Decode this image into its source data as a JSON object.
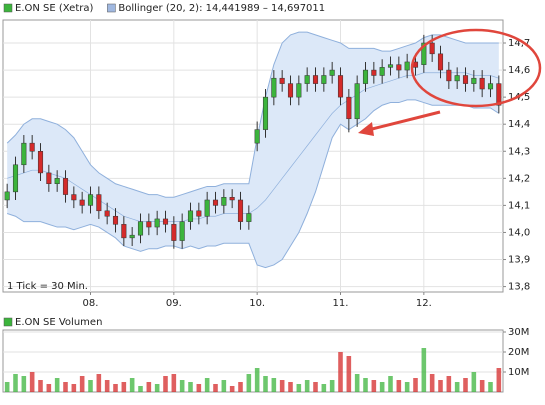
{
  "chart_data": [
    {
      "type": "candlestick",
      "legend": [
        {
          "name": "E.ON SE (Xetra)",
          "color": "#3cb43c"
        },
        {
          "name": "Bollinger (20, 2): 14,441989 – 14,697011",
          "color": "#a0b8e0"
        }
      ],
      "annotation": "1 Tick = 30 Min.",
      "up_color": "#3cb43c",
      "down_color": "#d42a2a",
      "band_color": "#dce8f8",
      "band_line_color": "#8fb0dc",
      "xlim": [
        -0.5,
        59.5
      ],
      "xticks": [
        {
          "value": 10,
          "label": "08."
        },
        {
          "value": 20,
          "label": "09."
        },
        {
          "value": 30,
          "label": "10."
        },
        {
          "value": 40,
          "label": "11."
        },
        {
          "value": 50,
          "label": "12."
        }
      ],
      "ylim": [
        13.78,
        14.785
      ],
      "yticks": [
        {
          "value": 13.8,
          "label": "13,8"
        },
        {
          "value": 13.9,
          "label": "13,9"
        },
        {
          "value": 14.0,
          "label": "14,0"
        },
        {
          "value": 14.1,
          "label": "14,1"
        },
        {
          "value": 14.2,
          "label": "14,2"
        },
        {
          "value": 14.3,
          "label": "14,3"
        },
        {
          "value": 14.4,
          "label": "14,4"
        },
        {
          "value": 14.5,
          "label": "14,5"
        },
        {
          "value": 14.6,
          "label": "14,6"
        },
        {
          "value": 14.7,
          "label": "14,7"
        }
      ],
      "grid": true,
      "x": [
        0,
        1,
        2,
        3,
        4,
        5,
        6,
        7,
        8,
        9,
        10,
        11,
        12,
        13,
        14,
        15,
        16,
        17,
        18,
        19,
        20,
        21,
        22,
        23,
        24,
        25,
        26,
        27,
        28,
        29,
        30,
        31,
        32,
        33,
        34,
        35,
        36,
        37,
        38,
        39,
        40,
        41,
        42,
        43,
        44,
        45,
        46,
        47,
        48,
        49,
        50,
        51,
        52,
        53,
        54,
        55,
        56,
        57,
        58,
        59
      ],
      "open": [
        14.12,
        14.15,
        14.25,
        14.33,
        14.3,
        14.22,
        14.18,
        14.2,
        14.14,
        14.12,
        14.1,
        14.14,
        14.08,
        14.06,
        14.03,
        13.98,
        13.99,
        14.04,
        14.02,
        14.05,
        14.03,
        13.97,
        14.04,
        14.08,
        14.06,
        14.12,
        14.1,
        14.13,
        14.12,
        14.04,
        14.33,
        14.38,
        14.5,
        14.57,
        14.55,
        14.5,
        14.55,
        14.58,
        14.55,
        14.58,
        14.58,
        14.5,
        14.42,
        14.55,
        14.6,
        14.58,
        14.61,
        14.62,
        14.6,
        14.63,
        14.62,
        14.7,
        14.66,
        14.6,
        14.56,
        14.58,
        14.55,
        14.57,
        14.53,
        14.55
      ],
      "high": [
        14.18,
        14.28,
        14.36,
        14.36,
        14.33,
        14.25,
        14.23,
        14.23,
        14.17,
        14.15,
        14.17,
        14.17,
        14.11,
        14.09,
        14.06,
        14.02,
        14.07,
        14.07,
        14.08,
        14.08,
        14.06,
        14.07,
        14.11,
        14.11,
        14.15,
        14.15,
        14.16,
        14.16,
        14.15,
        14.1,
        14.41,
        14.53,
        14.6,
        14.6,
        14.58,
        14.58,
        14.61,
        14.61,
        14.61,
        14.63,
        14.61,
        14.53,
        14.58,
        14.63,
        14.63,
        14.64,
        14.65,
        14.65,
        14.66,
        14.66,
        14.73,
        14.73,
        14.69,
        14.63,
        14.61,
        14.61,
        14.6,
        14.6,
        14.58,
        14.58
      ],
      "low": [
        14.09,
        14.12,
        14.22,
        14.27,
        14.19,
        14.15,
        14.15,
        14.11,
        14.09,
        14.07,
        14.07,
        14.05,
        14.03,
        14.0,
        13.95,
        13.95,
        13.96,
        13.99,
        13.99,
        14.0,
        13.94,
        13.94,
        14.01,
        14.03,
        14.03,
        14.07,
        14.07,
        14.09,
        14.01,
        14.01,
        14.3,
        14.35,
        14.47,
        14.52,
        14.47,
        14.47,
        14.52,
        14.52,
        14.52,
        14.55,
        14.47,
        14.37,
        14.39,
        14.52,
        14.55,
        14.55,
        14.58,
        14.57,
        14.57,
        14.58,
        14.59,
        14.63,
        14.57,
        14.53,
        14.53,
        14.52,
        14.52,
        14.5,
        14.5,
        14.44
      ],
      "close": [
        14.15,
        14.25,
        14.33,
        14.3,
        14.22,
        14.18,
        14.2,
        14.14,
        14.12,
        14.1,
        14.14,
        14.08,
        14.06,
        14.03,
        13.98,
        13.99,
        14.04,
        14.02,
        14.05,
        14.03,
        13.97,
        14.04,
        14.08,
        14.06,
        14.12,
        14.1,
        14.13,
        14.12,
        14.04,
        14.07,
        14.38,
        14.5,
        14.57,
        14.55,
        14.5,
        14.55,
        14.58,
        14.55,
        14.58,
        14.6,
        14.5,
        14.42,
        14.55,
        14.6,
        14.58,
        14.61,
        14.62,
        14.6,
        14.63,
        14.61,
        14.7,
        14.66,
        14.6,
        14.56,
        14.58,
        14.55,
        14.57,
        14.53,
        14.55,
        14.47
      ],
      "upper": [
        14.33,
        14.36,
        14.4,
        14.42,
        14.42,
        14.41,
        14.4,
        14.38,
        14.35,
        14.3,
        14.25,
        14.22,
        14.2,
        14.18,
        14.17,
        14.16,
        14.15,
        14.14,
        14.14,
        14.13,
        14.13,
        14.14,
        14.15,
        14.16,
        14.17,
        14.17,
        14.18,
        14.18,
        14.18,
        14.18,
        14.35,
        14.5,
        14.62,
        14.7,
        14.73,
        14.74,
        14.74,
        14.73,
        14.72,
        14.71,
        14.7,
        14.68,
        14.68,
        14.68,
        14.68,
        14.67,
        14.67,
        14.68,
        14.69,
        14.7,
        14.72,
        14.73,
        14.73,
        14.72,
        14.71,
        14.7,
        14.7,
        14.7,
        14.7,
        14.7
      ],
      "middle": [
        14.2,
        14.21,
        14.22,
        14.23,
        14.23,
        14.22,
        14.21,
        14.2,
        14.18,
        14.16,
        14.14,
        14.12,
        14.1,
        14.08,
        14.06,
        14.05,
        14.04,
        14.04,
        14.04,
        14.04,
        14.04,
        14.04,
        14.05,
        14.05,
        14.06,
        14.06,
        14.07,
        14.07,
        14.07,
        14.07,
        14.09,
        14.12,
        14.16,
        14.2,
        14.24,
        14.28,
        14.32,
        14.36,
        14.4,
        14.44,
        14.47,
        14.49,
        14.51,
        14.53,
        14.54,
        14.55,
        14.56,
        14.57,
        14.58,
        14.58,
        14.59,
        14.59,
        14.59,
        14.59,
        14.59,
        14.59,
        14.58,
        14.58,
        14.58,
        14.57
      ],
      "lower": [
        14.07,
        14.06,
        14.04,
        14.04,
        14.04,
        14.03,
        14.02,
        14.02,
        14.01,
        14.02,
        14.03,
        14.02,
        14.0,
        13.98,
        13.95,
        13.94,
        13.93,
        13.94,
        13.94,
        13.95,
        13.95,
        13.94,
        13.95,
        13.94,
        13.95,
        13.95,
        13.96,
        13.96,
        13.96,
        13.96,
        13.88,
        13.87,
        13.88,
        13.9,
        13.95,
        14.0,
        14.07,
        14.15,
        14.25,
        14.35,
        14.4,
        14.38,
        14.4,
        14.42,
        14.45,
        14.47,
        14.48,
        14.48,
        14.49,
        14.49,
        14.48,
        14.47,
        14.47,
        14.47,
        14.47,
        14.47,
        14.46,
        14.46,
        14.46,
        14.44
      ]
    },
    {
      "type": "bar",
      "legend": [
        {
          "name": "E.ON SE Volumen",
          "color": "#3cb43c"
        }
      ],
      "ylim": [
        0,
        31
      ],
      "yticks": [
        {
          "value": 10,
          "label": "10M"
        },
        {
          "value": 20,
          "label": "20M"
        },
        {
          "value": 30,
          "label": "30M"
        }
      ],
      "grid": true,
      "values": [
        5,
        9,
        8,
        10,
        6,
        4,
        7,
        5,
        4,
        8,
        6,
        9,
        6,
        4,
        5,
        7,
        3,
        5,
        4,
        8,
        9,
        6,
        5,
        4,
        7,
        4,
        6,
        3,
        5,
        9,
        12,
        8,
        7,
        6,
        5,
        4,
        6,
        5,
        4,
        6,
        20,
        18,
        9,
        7,
        6,
        5,
        8,
        6,
        5,
        7,
        22,
        9,
        6,
        8,
        5,
        7,
        10,
        6,
        5,
        12
      ]
    }
  ]
}
